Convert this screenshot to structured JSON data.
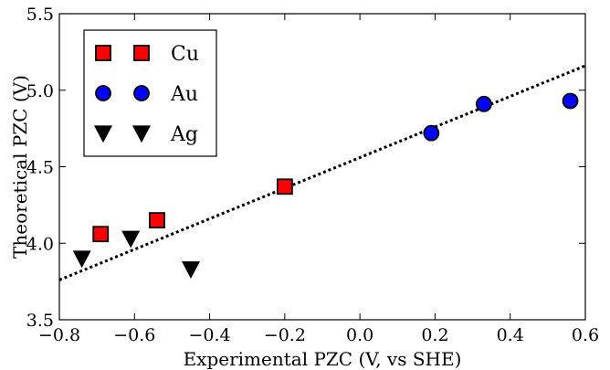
{
  "chart_data": {
    "type": "scatter",
    "xlabel": "Experimental PZC (V, vs SHE)",
    "ylabel": "Theoretical PZC (V)",
    "xlim": [
      -0.8,
      0.6
    ],
    "ylim": [
      3.5,
      5.5
    ],
    "xticks": [
      -0.8,
      -0.6,
      -0.4,
      -0.2,
      0.0,
      0.2,
      0.4,
      0.6
    ],
    "xtick_labels": [
      "−0.8",
      "−0.6",
      "−0.4",
      "−0.2",
      "0.0",
      "0.2",
      "0.4",
      "0.6"
    ],
    "yticks": [
      3.5,
      4.0,
      4.5,
      5.0,
      5.5
    ],
    "ytick_labels": [
      "3.5",
      "4.0",
      "4.5",
      "5.0",
      "5.5"
    ],
    "grid": false,
    "legend_position": "top-left",
    "series": [
      {
        "name": "Cu",
        "marker": "square",
        "color": "#ff0000",
        "points": [
          {
            "x": -0.69,
            "y": 4.06
          },
          {
            "x": -0.54,
            "y": 4.15
          },
          {
            "x": -0.2,
            "y": 4.37
          }
        ]
      },
      {
        "name": "Au",
        "marker": "circle",
        "color": "#0000ff",
        "points": [
          {
            "x": 0.19,
            "y": 4.72
          },
          {
            "x": 0.33,
            "y": 4.91
          },
          {
            "x": 0.56,
            "y": 4.93
          }
        ]
      },
      {
        "name": "Ag",
        "marker": "triangle-down",
        "color": "#000000",
        "points": [
          {
            "x": -0.74,
            "y": 3.9
          },
          {
            "x": -0.61,
            "y": 4.03
          },
          {
            "x": -0.45,
            "y": 3.83
          }
        ]
      }
    ],
    "fit_line": {
      "style": "dotted",
      "color": "#000000",
      "x": [
        -0.8,
        0.6
      ],
      "y": [
        3.76,
        5.16
      ]
    }
  }
}
